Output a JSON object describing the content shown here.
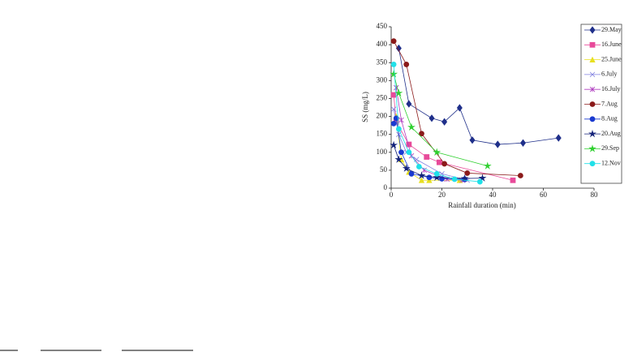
{
  "chart_data": {
    "type": "line",
    "xlabel": "Rainfall duration (min)",
    "ylabel": "SS (mg/L)",
    "xlim": [
      0,
      80
    ],
    "xticks": [
      0,
      20,
      40,
      60,
      80
    ],
    "ylim": [
      0,
      450
    ],
    "yticks": [
      0,
      50,
      100,
      150,
      200,
      250,
      300,
      350,
      400,
      450
    ],
    "legend": "right",
    "series": [
      {
        "name": "29.May",
        "color": "#1f2f8a",
        "marker": "diamond",
        "x": [
          3,
          7,
          16,
          21,
          27,
          32,
          42,
          52,
          66
        ],
        "values": [
          390,
          235,
          195,
          185,
          224,
          134,
          122,
          126,
          140
        ]
      },
      {
        "name": "16.June",
        "color": "#e84a9a",
        "marker": "square",
        "x": [
          1,
          2,
          7,
          14,
          19,
          48
        ],
        "values": [
          260,
          185,
          122,
          87,
          72,
          22
        ]
      },
      {
        "name": "25.June",
        "color": "#e8e020",
        "marker": "triangle",
        "x": [
          2,
          4,
          7,
          12,
          15,
          27
        ],
        "values": [
          200,
          80,
          45,
          22,
          22,
          22
        ]
      },
      {
        "name": "6.July",
        "color": "#8080e0",
        "marker": "cross",
        "x": [
          1,
          3,
          6,
          10,
          20,
          30
        ],
        "values": [
          220,
          150,
          100,
          80,
          40,
          22
        ]
      },
      {
        "name": "16.July",
        "color": "#b040c0",
        "marker": "asterisk",
        "x": [
          2,
          4,
          8,
          13,
          22,
          28
        ],
        "values": [
          280,
          190,
          90,
          50,
          25,
          22
        ]
      },
      {
        "name": "7.Aug",
        "color": "#8b1a1a",
        "marker": "circle",
        "x": [
          1,
          6,
          12,
          21,
          30,
          51
        ],
        "values": [
          410,
          345,
          152,
          68,
          42,
          35
        ]
      },
      {
        "name": "8.Aug",
        "color": "#1a3ad0",
        "marker": "circle",
        "x": [
          1,
          2,
          4,
          8,
          15,
          20,
          29
        ],
        "values": [
          180,
          195,
          100,
          40,
          30,
          26,
          25
        ]
      },
      {
        "name": "20.Aug",
        "color": "#14237a",
        "marker": "star",
        "x": [
          1,
          3,
          6,
          12,
          18,
          29,
          36
        ],
        "values": [
          120,
          80,
          55,
          35,
          30,
          27,
          28
        ]
      },
      {
        "name": "29.Sep",
        "color": "#30d030",
        "marker": "star",
        "x": [
          1,
          3,
          8,
          18,
          38
        ],
        "values": [
          318,
          265,
          170,
          100,
          62
        ]
      },
      {
        "name": "12.Nov",
        "color": "#20e0e8",
        "marker": "circle",
        "x": [
          1,
          3,
          7,
          11,
          18,
          25,
          35
        ],
        "values": [
          345,
          165,
          100,
          60,
          40,
          25,
          18
        ]
      }
    ]
  }
}
